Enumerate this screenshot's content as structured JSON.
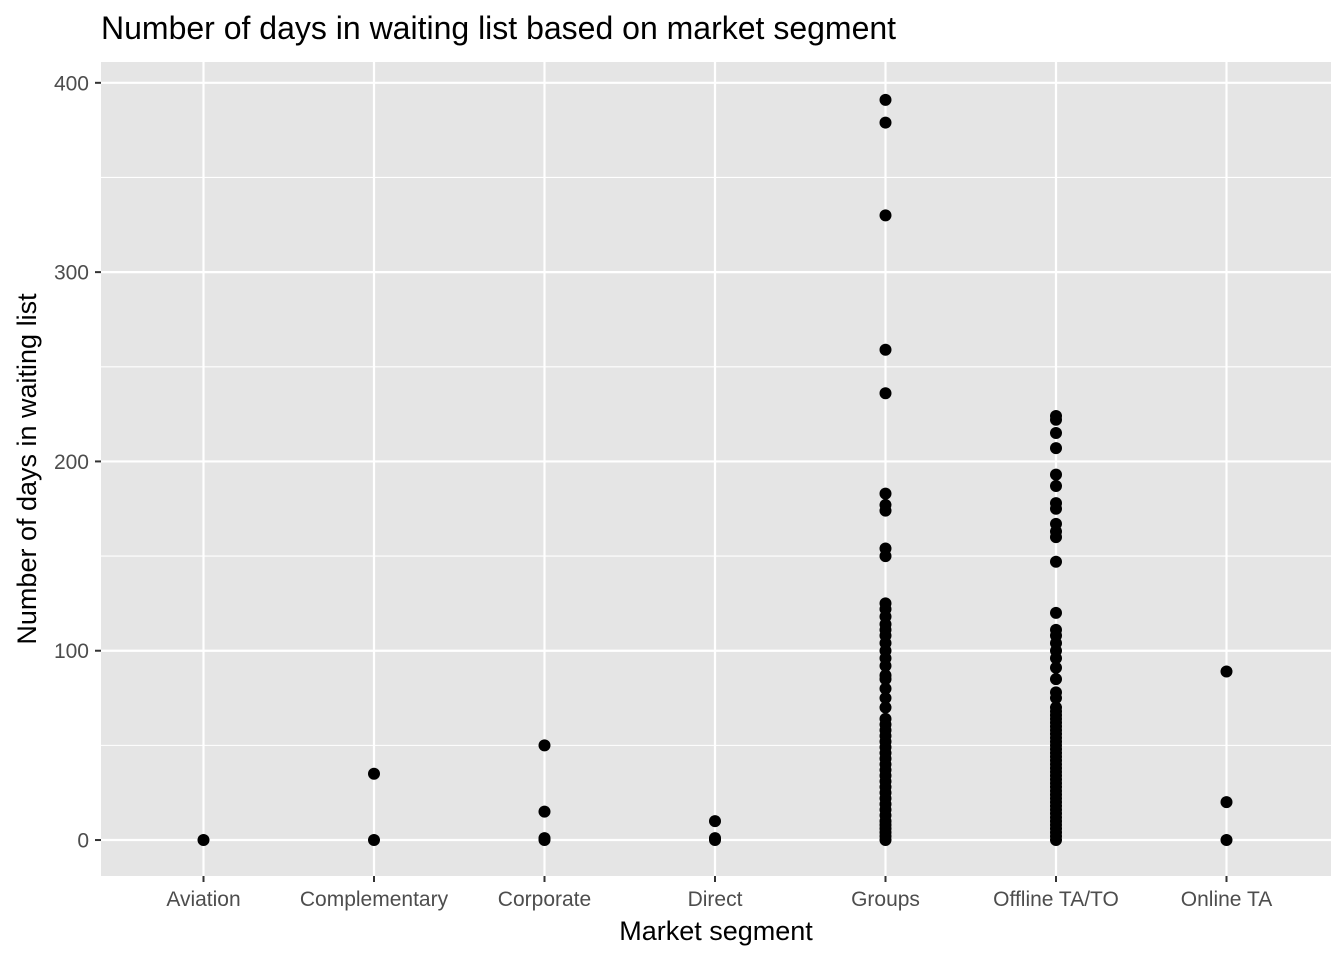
{
  "chart_data": {
    "type": "scatter",
    "title": "Number of days in waiting list based on market segment",
    "xlabel": "Market segment",
    "ylabel": "Number of days in waiting list",
    "categories": [
      "Aviation",
      "Complementary",
      "Corporate",
      "Direct",
      "Groups",
      "Offline TA/TO",
      "Online TA"
    ],
    "y_ticks": [
      0,
      100,
      200,
      300,
      400
    ],
    "ylim": [
      -19,
      411
    ],
    "grid": true,
    "legend": "none",
    "colors": {
      "panel": "#e5e5e5",
      "grid": "#ffffff",
      "points": "#000000",
      "ticks": "#333333",
      "tick_labels": "#4d4d4d"
    },
    "points": [
      {
        "category": "Aviation",
        "values": [
          0
        ]
      },
      {
        "category": "Complementary",
        "values": [
          0,
          35
        ]
      },
      {
        "category": "Corporate",
        "values": [
          0,
          1,
          15,
          50
        ]
      },
      {
        "category": "Direct",
        "values": [
          0,
          1,
          10
        ]
      },
      {
        "category": "Groups",
        "values": [
          0,
          2,
          4,
          6,
          8,
          10,
          13,
          16,
          19,
          22,
          25,
          28,
          31,
          34,
          37,
          40,
          43,
          46,
          49,
          52,
          55,
          58,
          61,
          64,
          70,
          75,
          80,
          85,
          87,
          92,
          96,
          100,
          104,
          108,
          111,
          114,
          118,
          122,
          125,
          150,
          154,
          174,
          177,
          183,
          236,
          259,
          330,
          379,
          391
        ]
      },
      {
        "category": "Offline TA/TO",
        "values": [
          0,
          2,
          4,
          6,
          8,
          10,
          12,
          14,
          16,
          18,
          20,
          22,
          24,
          26,
          28,
          30,
          32,
          34,
          36,
          38,
          40,
          42,
          44,
          46,
          48,
          50,
          52,
          54,
          56,
          58,
          60,
          62,
          64,
          66,
          68,
          70,
          75,
          78,
          85,
          91,
          96,
          100,
          104,
          108,
          111,
          120,
          147,
          160,
          163,
          167,
          175,
          178,
          187,
          193,
          207,
          215,
          222,
          224
        ]
      },
      {
        "category": "Online TA",
        "values": [
          0,
          20,
          89
        ]
      }
    ]
  }
}
